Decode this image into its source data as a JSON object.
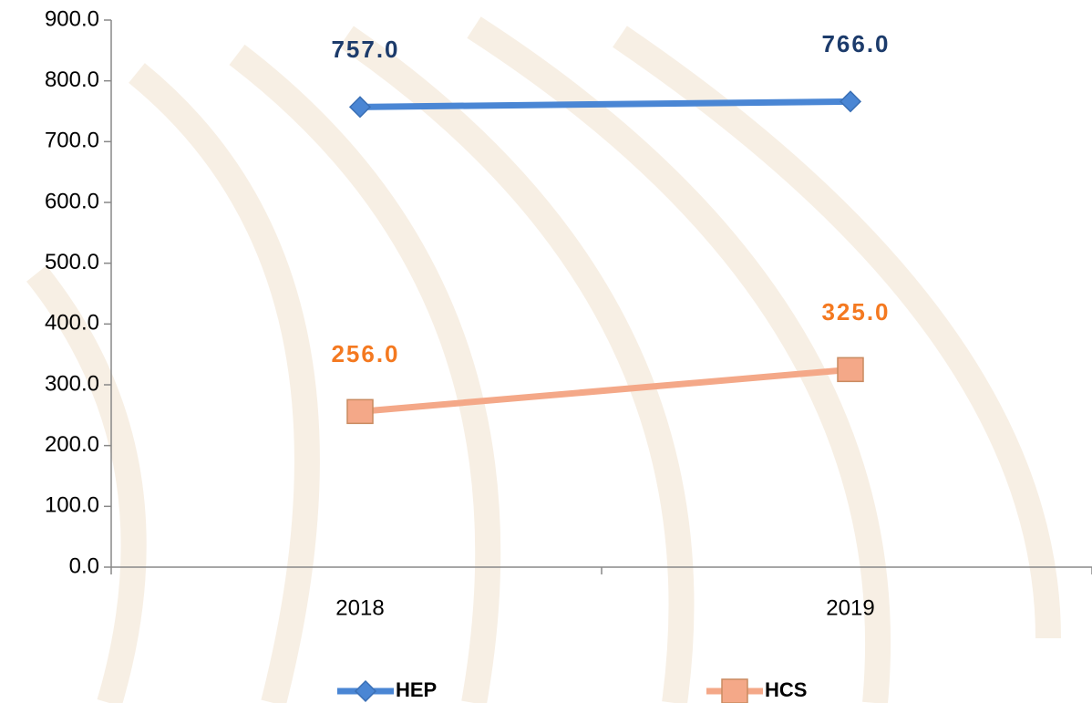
{
  "chart_data": {
    "type": "line",
    "categories": [
      "2018",
      "2019"
    ],
    "series": [
      {
        "name": "HEP",
        "color": "#4a86d4",
        "label_color": "#1c3b6b",
        "marker": "diamond",
        "values": [
          757,
          766
        ],
        "value_labels": [
          "757.0",
          "766.0"
        ]
      },
      {
        "name": "HCS",
        "color": "#f4a888",
        "label_color": "#f47920",
        "marker": "square",
        "values": [
          256,
          325
        ],
        "value_labels": [
          "256.0",
          "325.0"
        ]
      }
    ],
    "ylim": [
      0,
      900
    ],
    "yticks": [
      {
        "value": 0,
        "label": "0.0"
      },
      {
        "value": 100,
        "label": "100.0"
      },
      {
        "value": 200,
        "label": "200.0"
      },
      {
        "value": 300,
        "label": "300.0"
      },
      {
        "value": 400,
        "label": "400.0"
      },
      {
        "value": 500,
        "label": "500.0"
      },
      {
        "value": 600,
        "label": "600.0"
      },
      {
        "value": 700,
        "label": "700.0"
      },
      {
        "value": 800,
        "label": "800.0"
      },
      {
        "value": 900,
        "label": "900.0"
      }
    ],
    "grid": false,
    "legend": "bottom"
  }
}
